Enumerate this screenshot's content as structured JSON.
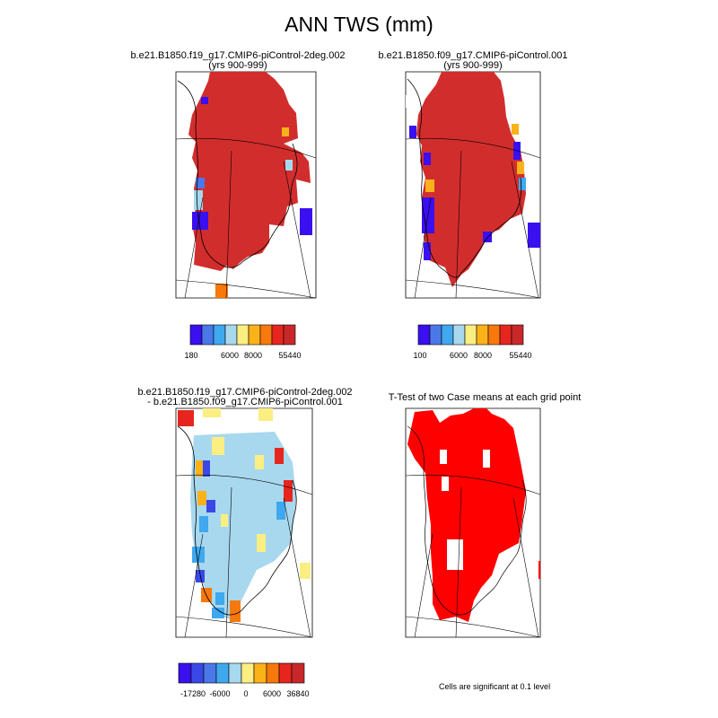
{
  "title": "ANN TWS (mm)",
  "panels": [
    {
      "line1": "b.e21.B1850.f19_g17.CMIP6-piControl-2deg.002",
      "line2": "(yrs 900-999)",
      "colorbar": {
        "colors": [
          "#3a0ff0",
          "#4a78e8",
          "#3fa8ef",
          "#a8d8ee",
          "#fbee82",
          "#fbb218",
          "#f7780c",
          "#e6261e",
          "#c8282a"
        ],
        "labels": [
          "180",
          "6000",
          "8000",
          "55440"
        ]
      }
    },
    {
      "line1": "b.e21.B1850.f09_g17.CMIP6-piControl.001",
      "line2": "(yrs 900-999)",
      "colorbar": {
        "colors": [
          "#3a0ff0",
          "#4a78e8",
          "#3fa8ef",
          "#a8d8ee",
          "#fbee82",
          "#fbb218",
          "#f7780c",
          "#e6261e",
          "#c8282a"
        ],
        "labels": [
          "100",
          "6000",
          "8000",
          "55440"
        ]
      }
    },
    {
      "line1": "b.e21.B1850.f19_g17.CMIP6-piControl-2deg.002",
      "line2": "- b.e21.B1850.f09_g17.CMIP6-piControl.001",
      "colorbar": {
        "colors": [
          "#3a0ff0",
          "#3a48e8",
          "#4a78e8",
          "#3fa8ef",
          "#a8d8ee",
          "#fbee82",
          "#fbb218",
          "#f7780c",
          "#e6261e",
          "#c8282a"
        ],
        "labels": [
          "-17280",
          "-6000",
          "0",
          "6000",
          "36840"
        ]
      }
    },
    {
      "line1": "T-Test of two Case means at each grid point",
      "line2": "",
      "note": "Cells are significant at 0.1 level"
    }
  ]
}
